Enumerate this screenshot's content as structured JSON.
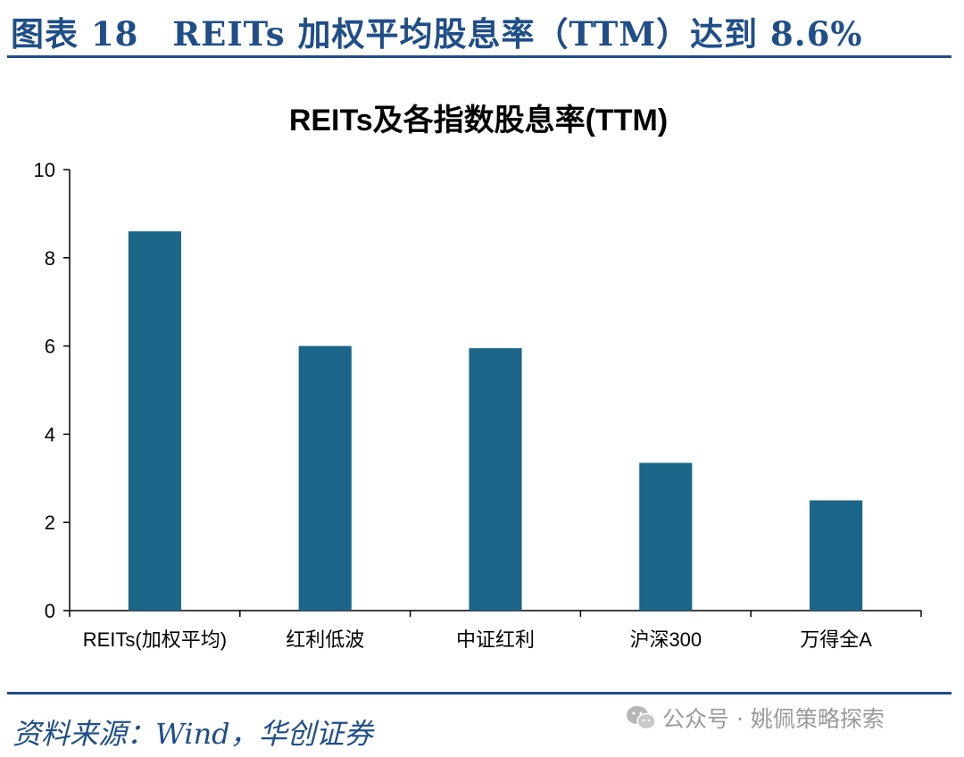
{
  "header": {
    "title": "图表 18　REITs 加权平均股息率（TTM）达到 8.6%"
  },
  "chart_data": {
    "type": "bar",
    "title": "REITs及各指数股息率(TTM)",
    "xlabel": "",
    "ylabel": "",
    "categories": [
      "REITs(加权平均)",
      "红利低波",
      "中证红利",
      "沪深300",
      "万得全A"
    ],
    "values": [
      8.6,
      6.0,
      5.95,
      3.35,
      2.5
    ],
    "ylim": [
      0,
      10
    ],
    "yticks": [
      0,
      2,
      4,
      6,
      8,
      10
    ],
    "bar_color": "#1c6689",
    "grid": false,
    "legend": "none"
  },
  "footer": {
    "source": "资料来源：Wind，华创证券",
    "watermark": "公众号 · 姚佩策略探索",
    "watermark_icon": "wechat-icon"
  }
}
